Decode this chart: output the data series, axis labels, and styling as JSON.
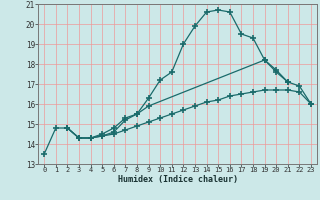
{
  "xlabel": "Humidex (Indice chaleur)",
  "background_color": "#cce8e8",
  "grid_color": "#ee9999",
  "line_color": "#1a6b6b",
  "xlim": [
    -0.5,
    23.5
  ],
  "ylim": [
    13,
    21
  ],
  "yticks": [
    13,
    14,
    15,
    16,
    17,
    18,
    19,
    20,
    21
  ],
  "xticks": [
    0,
    1,
    2,
    3,
    4,
    5,
    6,
    7,
    8,
    9,
    10,
    11,
    12,
    13,
    14,
    15,
    16,
    17,
    18,
    19,
    20,
    21,
    22,
    23
  ],
  "series1_x": [
    0,
    1,
    2,
    3,
    4,
    5,
    6,
    7,
    8,
    9,
    10,
    11,
    12,
    13,
    14,
    15,
    16,
    17,
    18,
    19,
    20,
    21
  ],
  "series1_y": [
    13.5,
    14.8,
    14.8,
    14.3,
    14.3,
    14.5,
    14.8,
    15.3,
    15.5,
    16.3,
    17.2,
    17.6,
    19.0,
    19.9,
    20.6,
    20.7,
    20.6,
    19.5,
    19.3,
    18.2,
    17.6,
    17.1
  ],
  "series2_x": [
    2,
    3,
    4,
    5,
    6,
    7,
    8,
    9,
    19,
    20,
    21,
    22,
    23
  ],
  "series2_y": [
    14.8,
    14.3,
    14.3,
    14.4,
    14.6,
    15.2,
    15.5,
    15.9,
    18.2,
    17.7,
    17.1,
    16.9,
    16.0
  ],
  "series3_x": [
    2,
    3,
    4,
    5,
    6,
    7,
    8,
    9,
    10,
    11,
    12,
    13,
    14,
    15,
    16,
    17,
    18,
    19,
    20,
    21,
    22,
    23
  ],
  "series3_y": [
    14.8,
    14.3,
    14.3,
    14.4,
    14.5,
    14.7,
    14.9,
    15.1,
    15.3,
    15.5,
    15.7,
    15.9,
    16.1,
    16.2,
    16.4,
    16.5,
    16.6,
    16.7,
    16.7,
    16.7,
    16.6,
    16.0
  ]
}
